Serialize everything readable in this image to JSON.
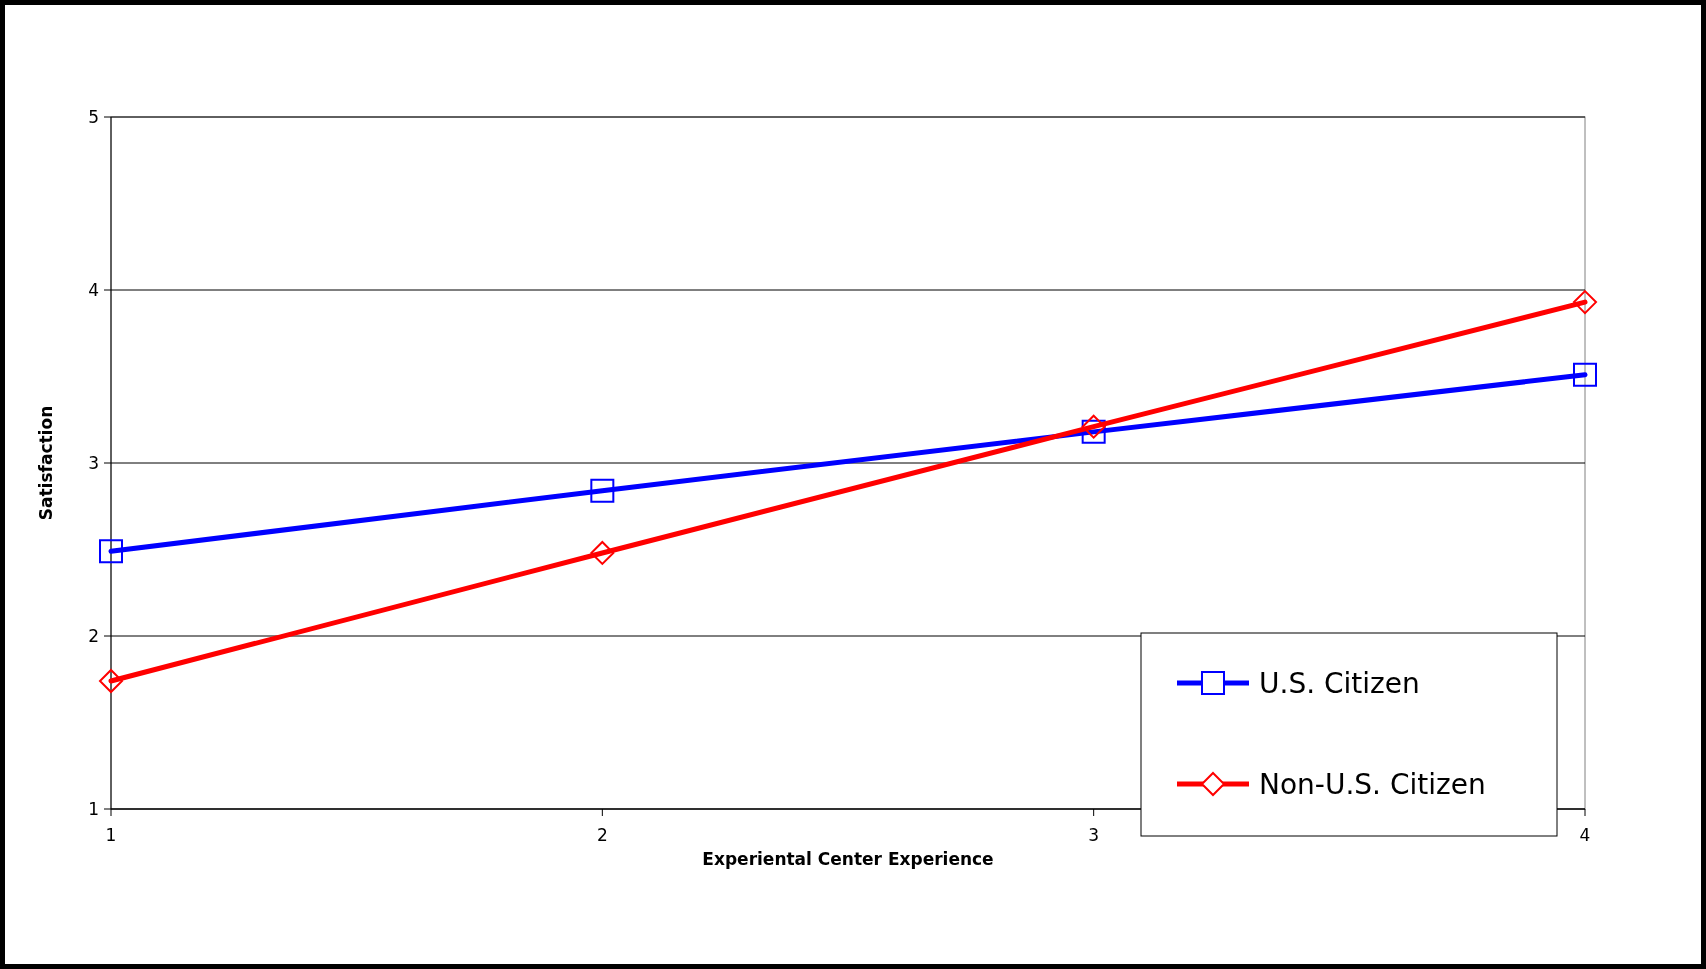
{
  "chart_data": {
    "type": "line",
    "xlabel": "Experiental Center Experience",
    "ylabel": "Satisfaction",
    "x": [
      1,
      2,
      3,
      4
    ],
    "series": [
      {
        "name": "U.S. Citizen",
        "color": "#0000ff",
        "marker": "square",
        "values": [
          2.49,
          2.84,
          3.18,
          3.51
        ]
      },
      {
        "name": "Non-U.S. Citizen",
        "color": "#ff0000",
        "marker": "diamond",
        "values": [
          1.74,
          2.48,
          3.21,
          3.93
        ]
      }
    ],
    "xlim": [
      1,
      4
    ],
    "xticks": [
      1,
      2,
      3,
      4
    ],
    "ylim": [
      1,
      5
    ],
    "yticks": [
      1,
      2,
      3,
      4,
      5
    ],
    "grid": "y",
    "legend": "bottom right",
    "line_style": "solid"
  }
}
